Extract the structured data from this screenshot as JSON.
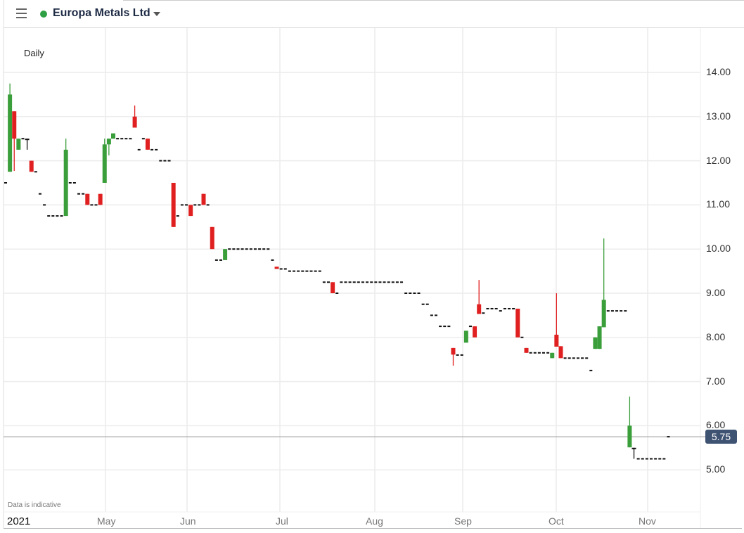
{
  "header": {
    "instrument": "Europa Metals Ltd",
    "status_color": "#2ea043",
    "menu_icon": "hamburger-icon",
    "dropdown_icon": "caret-down-icon"
  },
  "chart_meta": {
    "interval": "Daily",
    "disclaimer": "Data is indicative",
    "last_price": "5.75"
  },
  "chart_data": {
    "type": "candlestick",
    "title": "",
    "x_labels": [
      "2021",
      "May",
      "Jun",
      "Jul",
      "Aug",
      "Sep",
      "Oct",
      "Nov"
    ],
    "y_ticks": [
      "14.00",
      "13.00",
      "12.00",
      "11.00",
      "10.00",
      "9.00",
      "8.00",
      "7.00",
      "6.00",
      "5.00"
    ],
    "ylim": [
      4.5,
      14.5
    ],
    "grid": true,
    "up_color": "#3a9e3a",
    "down_color": "#e02020",
    "flat_color": "#111111",
    "last_price": 5.75,
    "ohlc": [
      [
        11.5,
        11.5,
        11.5,
        11.5
      ],
      [
        11.75,
        13.75,
        11.75,
        13.5
      ],
      [
        13.12,
        13.12,
        11.77,
        12.5
      ],
      [
        12.25,
        12.5,
        12.25,
        12.5
      ],
      [
        12.5,
        12.5,
        12.5,
        12.5
      ],
      [
        12.5,
        12.5,
        12.25,
        12.5
      ],
      [
        12,
        12,
        11.75,
        11.75
      ],
      [
        11.75,
        11.75,
        11.75,
        11.75
      ],
      [
        11.25,
        11.25,
        11.25,
        11.25
      ],
      [
        11,
        11,
        11,
        11
      ],
      [
        10.75,
        10.75,
        10.75,
        10.75
      ],
      [
        10.75,
        10.75,
        10.75,
        10.75
      ],
      [
        10.75,
        10.75,
        10.75,
        10.75
      ],
      [
        10.75,
        10.75,
        10.75,
        10.75
      ],
      [
        10.75,
        12.5,
        10.75,
        12.25
      ],
      [
        11.5,
        11.5,
        11.5,
        11.5
      ],
      [
        11.5,
        11.5,
        11.5,
        11.5
      ],
      [
        11.25,
        11.25,
        11.25,
        11.25
      ],
      [
        11.25,
        11.25,
        11.25,
        11.25
      ],
      [
        11.25,
        11.25,
        11,
        11
      ],
      [
        11,
        11,
        11,
        11
      ],
      [
        11,
        11,
        11,
        11
      ],
      [
        11.25,
        11.25,
        11,
        11
      ],
      [
        11.5,
        12.5,
        11.5,
        12.37
      ],
      [
        12.37,
        12.5,
        12.12,
        12.5
      ],
      [
        12.5,
        12.62,
        12.5,
        12.62
      ],
      [
        12.5,
        12.5,
        12.5,
        12.5
      ],
      [
        12.5,
        12.5,
        12.5,
        12.5
      ],
      [
        12.5,
        12.5,
        12.5,
        12.5
      ],
      [
        12.5,
        12.5,
        12.5,
        12.5
      ],
      [
        13,
        13.25,
        12.75,
        12.75
      ],
      [
        12.25,
        12.25,
        12.25,
        12.25
      ],
      [
        12.5,
        12.5,
        12.5,
        12.5
      ],
      [
        12.5,
        12.5,
        12.25,
        12.25
      ],
      [
        12.25,
        12.25,
        12.25,
        12.25
      ],
      [
        12.25,
        12.25,
        12.25,
        12.25
      ],
      [
        12,
        12,
        12,
        12
      ],
      [
        12,
        12,
        12,
        12
      ],
      [
        12,
        12,
        12,
        12
      ],
      [
        11.5,
        11.5,
        10.5,
        10.5
      ],
      [
        10.75,
        10.75,
        10.75,
        10.75
      ],
      [
        11,
        11,
        11,
        11
      ],
      [
        11,
        11,
        11,
        11
      ],
      [
        11,
        11,
        10.75,
        10.75
      ],
      [
        11,
        11,
        11,
        11
      ],
      [
        11,
        11,
        11,
        11
      ],
      [
        11.25,
        11.25,
        11,
        11
      ],
      [
        11,
        11,
        11,
        11
      ],
      [
        10.5,
        10.5,
        10,
        10
      ],
      [
        9.75,
        9.75,
        9.75,
        9.75
      ],
      [
        9.75,
        9.75,
        9.75,
        9.75
      ],
      [
        9.75,
        10,
        9.75,
        10
      ],
      [
        10,
        10,
        10,
        10
      ],
      [
        10,
        10,
        10,
        10
      ],
      [
        10,
        10,
        10,
        10
      ],
      [
        10,
        10,
        10,
        10
      ],
      [
        10,
        10,
        10,
        10
      ],
      [
        10,
        10,
        10,
        10
      ],
      [
        10,
        10,
        10,
        10
      ],
      [
        10,
        10,
        10,
        10
      ],
      [
        10,
        10,
        10,
        10
      ],
      [
        10,
        10,
        10,
        10
      ],
      [
        9.75,
        9.75,
        9.75,
        9.75
      ],
      [
        9.6,
        9.6,
        9.55,
        9.55
      ],
      [
        9.55,
        9.55,
        9.55,
        9.55
      ],
      [
        9.55,
        9.55,
        9.55,
        9.55
      ],
      [
        9.5,
        9.5,
        9.5,
        9.5
      ],
      [
        9.5,
        9.5,
        9.5,
        9.5
      ],
      [
        9.5,
        9.5,
        9.5,
        9.5
      ],
      [
        9.5,
        9.5,
        9.5,
        9.5
      ],
      [
        9.5,
        9.5,
        9.5,
        9.5
      ],
      [
        9.5,
        9.5,
        9.5,
        9.5
      ],
      [
        9.5,
        9.5,
        9.5,
        9.5
      ],
      [
        9.5,
        9.5,
        9.5,
        9.5
      ],
      [
        9.25,
        9.25,
        9.25,
        9.25
      ],
      [
        9.25,
        9.25,
        9.25,
        9.25
      ],
      [
        9.25,
        9.25,
        9,
        9
      ],
      [
        9,
        9,
        9,
        9
      ],
      [
        9.25,
        9.25,
        9.25,
        9.25
      ],
      [
        9.25,
        9.25,
        9.25,
        9.25
      ],
      [
        9.25,
        9.25,
        9.25,
        9.25
      ],
      [
        9.25,
        9.25,
        9.25,
        9.25
      ],
      [
        9.25,
        9.25,
        9.25,
        9.25
      ],
      [
        9.25,
        9.25,
        9.25,
        9.25
      ],
      [
        9.25,
        9.25,
        9.25,
        9.25
      ],
      [
        9.25,
        9.25,
        9.25,
        9.25
      ],
      [
        9.25,
        9.25,
        9.25,
        9.25
      ],
      [
        9.25,
        9.25,
        9.25,
        9.25
      ],
      [
        9.25,
        9.25,
        9.25,
        9.25
      ],
      [
        9.25,
        9.25,
        9.25,
        9.25
      ],
      [
        9.25,
        9.25,
        9.25,
        9.25
      ],
      [
        9.25,
        9.25,
        9.25,
        9.25
      ],
      [
        9.25,
        9.25,
        9.25,
        9.25
      ],
      [
        9,
        9,
        9,
        9
      ],
      [
        9,
        9,
        9,
        9
      ],
      [
        9,
        9,
        9,
        9
      ],
      [
        9,
        9,
        9,
        9
      ],
      [
        8.75,
        8.75,
        8.75,
        8.75
      ],
      [
        8.75,
        8.75,
        8.75,
        8.75
      ],
      [
        8.5,
        8.5,
        8.5,
        8.5
      ],
      [
        8.5,
        8.5,
        8.5,
        8.5
      ],
      [
        8.25,
        8.25,
        8.25,
        8.25
      ],
      [
        8.25,
        8.25,
        8.25,
        8.25
      ],
      [
        8.25,
        8.25,
        8.25,
        8.25
      ],
      [
        7.76,
        7.76,
        7.36,
        7.61
      ],
      [
        7.6,
        7.6,
        7.6,
        7.6
      ],
      [
        7.6,
        7.6,
        7.6,
        7.6
      ],
      [
        7.88,
        8.15,
        7.88,
        8.15
      ],
      [
        8.25,
        8.25,
        8.25,
        8.25
      ],
      [
        8.25,
        8.25,
        8,
        8
      ],
      [
        8.75,
        9.3,
        8.53,
        8.53
      ],
      [
        8.55,
        8.55,
        8.55,
        8.55
      ],
      [
        8.65,
        8.65,
        8.65,
        8.65
      ],
      [
        8.65,
        8.65,
        8.65,
        8.65
      ],
      [
        8.65,
        8.65,
        8.65,
        8.65
      ],
      [
        8.6,
        8.6,
        8.6,
        8.6
      ],
      [
        8.65,
        8.65,
        8.65,
        8.65
      ],
      [
        8.65,
        8.65,
        8.65,
        8.65
      ],
      [
        8.65,
        8.65,
        8.65,
        8.65
      ],
      [
        8.65,
        8.65,
        8,
        8
      ],
      [
        8,
        8,
        8,
        8
      ],
      [
        7.76,
        7.76,
        7.65,
        7.65
      ],
      [
        7.65,
        7.65,
        7.65,
        7.65
      ],
      [
        7.65,
        7.65,
        7.65,
        7.65
      ],
      [
        7.65,
        7.65,
        7.65,
        7.65
      ],
      [
        7.65,
        7.65,
        7.65,
        7.65
      ],
      [
        7.65,
        7.65,
        7.65,
        7.65
      ],
      [
        7.53,
        7.65,
        7.53,
        7.65
      ],
      [
        8.06,
        9,
        7.79,
        7.79
      ],
      [
        7.8,
        7.8,
        7.53,
        7.53
      ],
      [
        7.53,
        7.53,
        7.53,
        7.53
      ],
      [
        7.53,
        7.53,
        7.53,
        7.53
      ],
      [
        7.53,
        7.53,
        7.53,
        7.53
      ],
      [
        7.53,
        7.53,
        7.53,
        7.53
      ],
      [
        7.53,
        7.53,
        7.53,
        7.53
      ],
      [
        7.53,
        7.53,
        7.53,
        7.53
      ],
      [
        7.25,
        7.25,
        7.25,
        7.25
      ],
      [
        7.74,
        8,
        7.74,
        8
      ],
      [
        7.74,
        8.25,
        7.74,
        8.25
      ],
      [
        8.23,
        10.24,
        8.23,
        8.85
      ],
      [
        8.6,
        8.6,
        8.6,
        8.6
      ],
      [
        8.6,
        8.6,
        8.6,
        8.6
      ],
      [
        8.6,
        8.6,
        8.6,
        8.6
      ],
      [
        8.6,
        8.6,
        8.6,
        8.6
      ],
      [
        8.6,
        8.6,
        8.6,
        8.6
      ],
      [
        5.51,
        6.66,
        5.51,
        6
      ],
      [
        5.5,
        5.5,
        5.25,
        5.5
      ],
      [
        5.25,
        5.25,
        5.25,
        5.25
      ],
      [
        5.25,
        5.25,
        5.25,
        5.25
      ],
      [
        5.25,
        5.25,
        5.25,
        5.25
      ],
      [
        5.25,
        5.25,
        5.25,
        5.25
      ],
      [
        5.25,
        5.25,
        5.25,
        5.25
      ],
      [
        5.25,
        5.25,
        5.25,
        5.25
      ],
      [
        5.25,
        5.25,
        5.25,
        5.25
      ],
      [
        5.75,
        5.75,
        5.75,
        5.75
      ]
    ]
  }
}
